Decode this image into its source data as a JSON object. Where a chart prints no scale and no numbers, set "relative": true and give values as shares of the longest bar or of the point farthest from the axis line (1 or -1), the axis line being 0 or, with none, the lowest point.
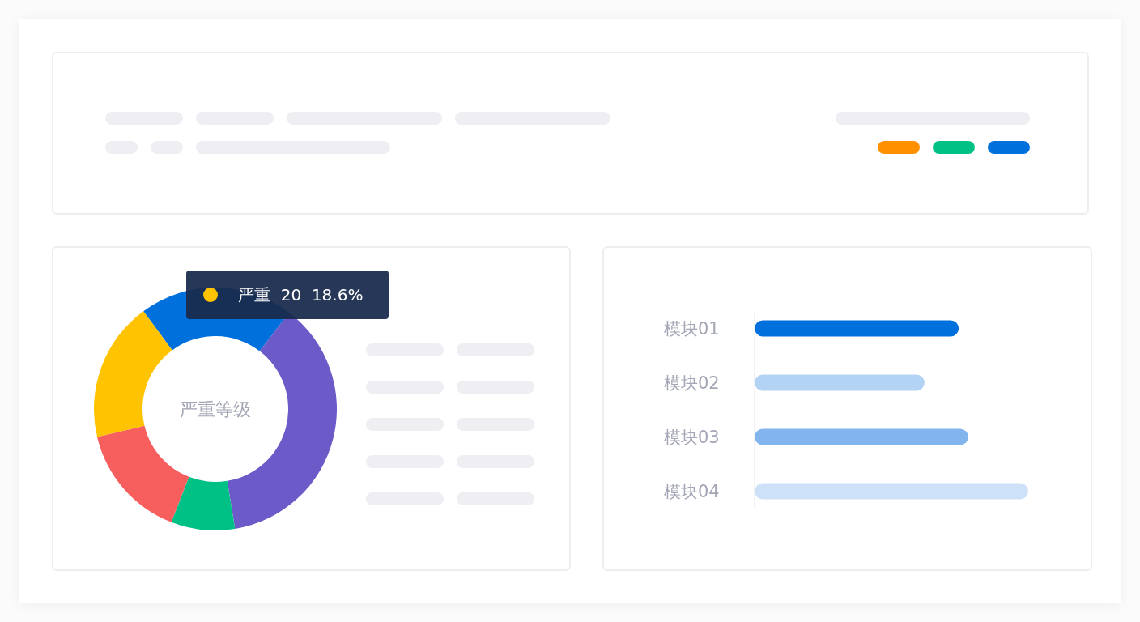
{
  "chart_data": [
    {
      "type": "donut",
      "title": "严重等级",
      "categories": [
        null,
        null,
        null,
        null,
        null
      ],
      "values": [
        20.5,
        37,
        8.5,
        15.4,
        18.6
      ],
      "colors": [
        "#0070dd",
        "#6c5ac8",
        "#00c185",
        "#f75e5e",
        "#ffc300"
      ],
      "annotations": [
        {
          "text": "严重  20  18.6%"
        }
      ]
    },
    {
      "type": "bar",
      "orientation": "horizontal",
      "relative": true,
      "categories": [
        "模块01",
        "模块02",
        "模块03",
        "模块04"
      ],
      "values": [
        0.746,
        0.621,
        0.781,
        1
      ],
      "colors": [
        "#0070dd",
        "#b3d3f5",
        "#82b5ee",
        "#cde2f8"
      ]
    }
  ]
}
